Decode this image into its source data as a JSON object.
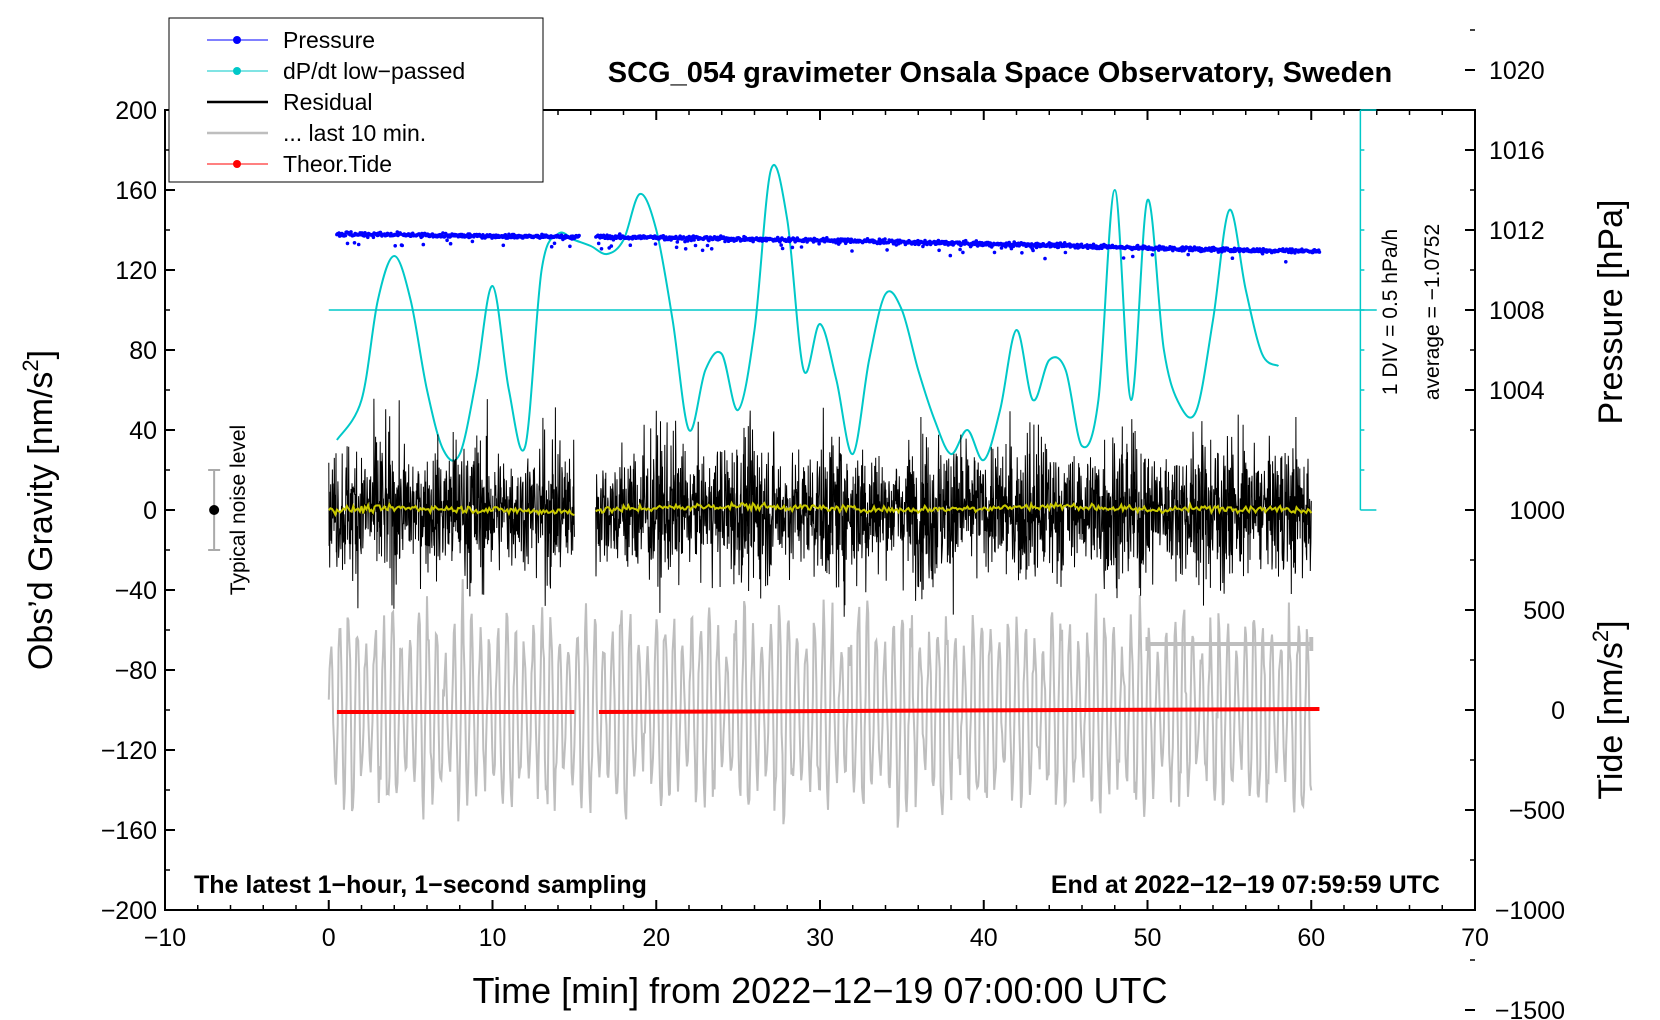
{
  "chart_data": {
    "type": "line",
    "title": "SCG_054 gravimeter Onsala Space Observatory, Sweden",
    "xlabel": "Time [min] from 2022−12−19 07:00:00 UTC",
    "ylabel_main": "Obs’d Gravity [nm/s",
    "ylabel_sup": "2",
    "ylabel_close": "]",
    "ylabel_pressure": "Pressure [hPa]",
    "ylabel_tide": "Tide [nm/s",
    "ylabel_tide_sup": "2",
    "ylabel_tide_close": "]",
    "xlim": [
      -10,
      70
    ],
    "ylim": [
      -200,
      200
    ],
    "x_ticks": [
      "−10",
      "0",
      "10",
      "20",
      "30",
      "40",
      "50",
      "60",
      "70"
    ],
    "x_tick_values": [
      -10,
      0,
      10,
      20,
      30,
      40,
      50,
      60,
      70
    ],
    "y_ticks": [
      "200",
      "160",
      "120",
      "80",
      "40",
      "0",
      "−40",
      "−80",
      "−120",
      "−160",
      "−200"
    ],
    "y_tick_values": [
      200,
      160,
      120,
      80,
      40,
      0,
      -40,
      -80,
      -120,
      -160,
      -200
    ],
    "pressure_ticks": [
      "1020",
      "1016",
      "1012",
      "1008",
      "1004"
    ],
    "pressure_tick_values": [
      1020,
      1016,
      1012,
      1008,
      1004
    ],
    "pressure_axis_map": {
      "hpa_at_y0": 998,
      "nm_per_hpa": 10
    },
    "tide_ticks": [
      "1000",
      "500",
      "0",
      "−500",
      "−1000",
      "−1500"
    ],
    "tide_tick_values": [
      1000,
      500,
      0,
      -500,
      -1000,
      -1500
    ],
    "tide_axis_map": {
      "tide_at_y_minus_100": 0,
      "nm_per_tide_unit": 0.1
    },
    "legend": [
      {
        "label": "Pressure",
        "color": "#0000ff",
        "marker": true
      },
      {
        "label": "dP/dt low−passed",
        "color": "#00c8c8",
        "marker": true
      },
      {
        "label": "Residual",
        "color": "#000000",
        "marker": false
      },
      {
        "label": "... last 10 min.",
        "color": "#bebebe",
        "marker": false
      },
      {
        "label": "Theor.Tide",
        "color": "#ff0000",
        "marker": true
      }
    ],
    "legend_position": "top-left",
    "annotations": {
      "bottom_left": "The latest 1−hour, 1−second sampling",
      "bottom_right": "End at 2022−12−19 07:59:59 UTC",
      "noise_label": "Typical noise level",
      "div_label": "1 DIV = 0.5 hPa/h",
      "avg_label": "average = −1.0752"
    },
    "noise_bar": {
      "x": -7,
      "center": 0,
      "low": -20,
      "high": 20
    },
    "dpdt_scale": {
      "x": 63,
      "y_low": 0,
      "y_high": 200,
      "baseline": 100,
      "baseline_x": [
        0,
        64
      ]
    },
    "last10_bar": {
      "x_start": 50,
      "x_end": 60,
      "y": -67
    },
    "series": [
      {
        "name": "Pressure",
        "color": "#0000ff",
        "x": [
          0.5,
          5,
          10,
          15,
          16.5,
          20,
          25,
          30,
          35,
          40,
          45,
          50,
          55,
          60.5
        ],
        "y": [
          138,
          137.5,
          137,
          136.5,
          136.5,
          136.3,
          135.5,
          135,
          134,
          133,
          132.3,
          131,
          130,
          129.5
        ],
        "gaps": [
          [
            15.3,
            16.3
          ]
        ]
      },
      {
        "name": "dP/dt low−passed",
        "color": "#00c8c8",
        "x": [
          0.5,
          2,
          3,
          4,
          5,
          6,
          7,
          8,
          9,
          10,
          11,
          12,
          13,
          14,
          15,
          16,
          17,
          18,
          19,
          20,
          21,
          22,
          23,
          24,
          25,
          26,
          27,
          28,
          29,
          30,
          31,
          32,
          33,
          34,
          35,
          36,
          37,
          38,
          39,
          40,
          41,
          42,
          43,
          44,
          45,
          46,
          47,
          48,
          49,
          50,
          51,
          52,
          53,
          54,
          55,
          56,
          57,
          58
        ],
        "y": [
          35,
          55,
          105,
          127,
          105,
          60,
          30,
          28,
          65,
          112,
          60,
          32,
          120,
          138,
          135,
          132,
          128,
          135,
          158,
          140,
          95,
          40,
          70,
          78,
          50,
          90,
          170,
          145,
          70,
          93,
          65,
          28,
          75,
          108,
          100,
          70,
          45,
          28,
          40,
          25,
          50,
          90,
          55,
          75,
          70,
          32,
          55,
          160,
          55,
          155,
          80,
          52,
          50,
          95,
          150,
          110,
          78,
          72
        ]
      },
      {
        "name": "Residual",
        "color": "#000000",
        "x_range": [
          0,
          60
        ],
        "amplitude": 60,
        "gaps": [
          [
            15,
            16.3
          ]
        ]
      },
      {
        "name": "Residual (smoothed)",
        "color": "#c8c800",
        "x": [
          0,
          5,
          10,
          15,
          16.5,
          20,
          25,
          30,
          35,
          40,
          45,
          50,
          55,
          60
        ],
        "y": [
          0,
          1,
          0,
          -1,
          0,
          1,
          2,
          1,
          0,
          1,
          2,
          0,
          1,
          0
        ]
      },
      {
        "name": "... last 10 min.",
        "color": "#bebebe",
        "x_range": [
          0,
          60
        ],
        "offset": -100,
        "amplitude": 60
      },
      {
        "name": "Theor.Tide",
        "color": "#ff0000",
        "x": [
          0.5,
          15,
          16.5,
          30,
          45,
          60.5
        ],
        "y": [
          -101,
          -101,
          -101,
          -100.5,
          -100,
          -99.5
        ],
        "gaps": [
          [
            15.3,
            16.3
          ]
        ]
      }
    ]
  }
}
